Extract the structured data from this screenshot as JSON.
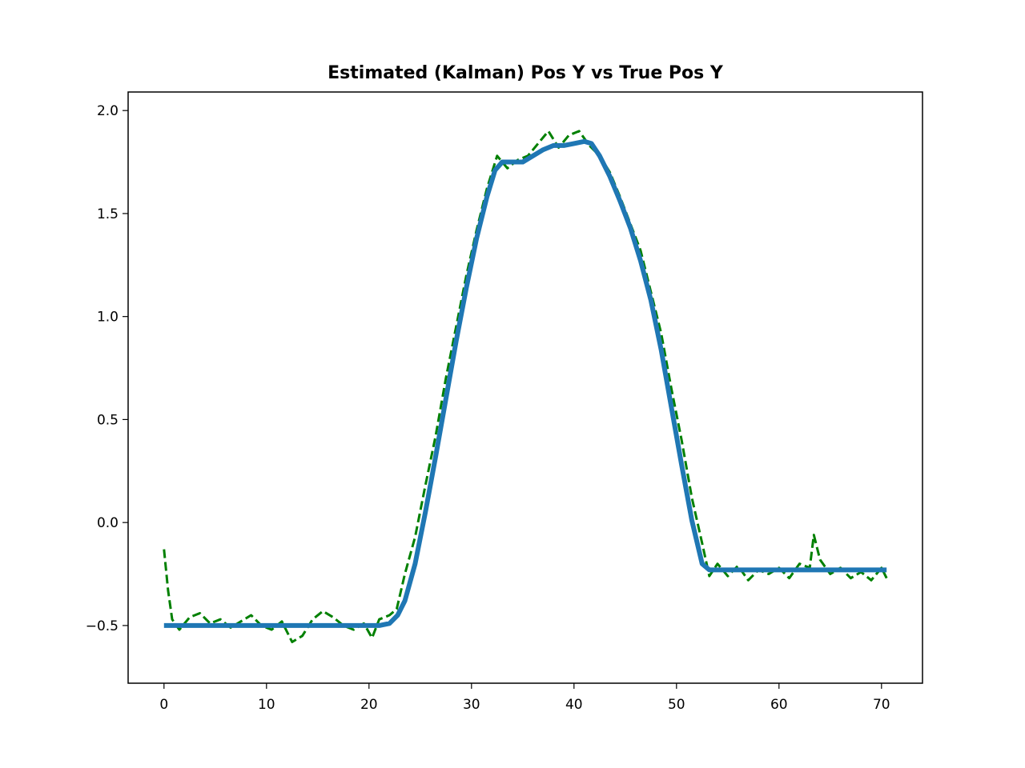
{
  "chart_data": {
    "type": "line",
    "title": "Estimated (Kalman) Pos Y vs True Pos Y",
    "xlabel": "",
    "ylabel": "",
    "xlim": [
      -3.5,
      74
    ],
    "ylim": [
      -0.78,
      2.09
    ],
    "x_ticks": [
      0,
      10,
      20,
      30,
      40,
      50,
      60,
      70
    ],
    "x_tick_labels": [
      "0",
      "10",
      "20",
      "30",
      "40",
      "50",
      "60",
      "70"
    ],
    "y_ticks": [
      -0.5,
      0.0,
      0.5,
      1.0,
      1.5,
      2.0
    ],
    "y_tick_labels": [
      "−0.5",
      "0.0",
      "0.5",
      "1.0",
      "1.5",
      "2.0"
    ],
    "grid": false,
    "legend": "none",
    "series": [
      {
        "role": "true",
        "color": "#008000",
        "style": "dashed",
        "x": [
          0,
          0.4,
          0.8,
          1.5,
          2.5,
          3.5,
          4.5,
          5.5,
          6.5,
          7.5,
          8.5,
          9.5,
          10.5,
          11.5,
          12.5,
          13.5,
          14.5,
          15.5,
          16.5,
          17.5,
          18.5,
          19.5,
          20.3,
          21,
          22,
          22.7,
          23.5,
          24.5,
          25.5,
          26.5,
          27.5,
          28.5,
          29.5,
          30.5,
          31.5,
          32.5,
          33.5,
          34.5,
          35.5,
          36.5,
          37.5,
          38.5,
          39.5,
          40.5,
          41.5,
          42.5,
          43.5,
          44.5,
          45.5,
          46.5,
          47.5,
          48.5,
          49.5,
          50.5,
          51.5,
          52.5,
          53.2,
          54,
          55,
          56,
          57,
          58,
          59,
          60,
          61,
          62,
          63,
          63.4,
          64,
          65,
          66,
          67,
          68,
          69,
          70,
          70.5
        ],
        "y": [
          -0.13,
          -0.33,
          -0.47,
          -0.52,
          -0.46,
          -0.44,
          -0.49,
          -0.47,
          -0.51,
          -0.48,
          -0.45,
          -0.5,
          -0.52,
          -0.48,
          -0.58,
          -0.55,
          -0.47,
          -0.43,
          -0.46,
          -0.5,
          -0.52,
          -0.49,
          -0.56,
          -0.47,
          -0.45,
          -0.42,
          -0.25,
          -0.07,
          0.18,
          0.42,
          0.7,
          0.95,
          1.2,
          1.42,
          1.62,
          1.78,
          1.72,
          1.76,
          1.78,
          1.84,
          1.9,
          1.82,
          1.88,
          1.9,
          1.83,
          1.78,
          1.7,
          1.58,
          1.45,
          1.32,
          1.12,
          0.92,
          0.65,
          0.4,
          0.12,
          -0.1,
          -0.26,
          -0.2,
          -0.26,
          -0.21,
          -0.28,
          -0.23,
          -0.25,
          -0.22,
          -0.27,
          -0.2,
          -0.22,
          -0.06,
          -0.18,
          -0.25,
          -0.22,
          -0.27,
          -0.24,
          -0.28,
          -0.22,
          -0.27
        ]
      },
      {
        "role": "estimated",
        "color": "#1f77b4",
        "style": "solid",
        "x": [
          0,
          5,
          10,
          15,
          20,
          21,
          22,
          22.8,
          23.5,
          24.5,
          25.5,
          26.5,
          27.5,
          28.5,
          29.5,
          30.5,
          31.5,
          32.3,
          33,
          34,
          35,
          36,
          37,
          38,
          39,
          40,
          41,
          41.7,
          42.5,
          43.5,
          44.5,
          45.5,
          46.5,
          47.5,
          48.5,
          49.5,
          50.5,
          51.5,
          52.5,
          53.2,
          55,
          60,
          65,
          70.5
        ],
        "y": [
          -0.5,
          -0.5,
          -0.5,
          -0.5,
          -0.5,
          -0.5,
          -0.49,
          -0.45,
          -0.38,
          -0.2,
          0.05,
          0.32,
          0.6,
          0.88,
          1.14,
          1.38,
          1.58,
          1.71,
          1.75,
          1.75,
          1.75,
          1.78,
          1.81,
          1.83,
          1.83,
          1.84,
          1.85,
          1.84,
          1.78,
          1.68,
          1.56,
          1.43,
          1.27,
          1.08,
          0.84,
          0.56,
          0.28,
          0.01,
          -0.2,
          -0.23,
          -0.23,
          -0.23,
          -0.23,
          -0.23
        ]
      }
    ]
  }
}
